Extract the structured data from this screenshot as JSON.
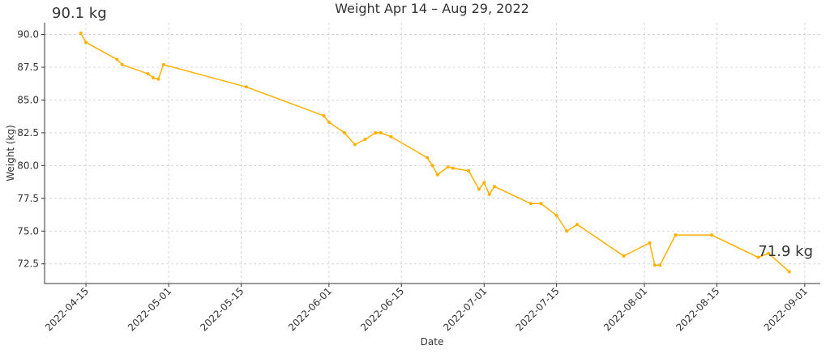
{
  "chart_data": {
    "type": "line",
    "title": "Weight Apr 14 – Aug 29, 2022",
    "x_label": "Date",
    "y_label": "Weight (kg)",
    "x": [
      "2022-04-14",
      "2022-04-15",
      "2022-04-21",
      "2022-04-22",
      "2022-04-27",
      "2022-04-28",
      "2022-04-29",
      "2022-04-30",
      "2022-05-16",
      "2022-05-31",
      "2022-06-01",
      "2022-06-04",
      "2022-06-06",
      "2022-06-08",
      "2022-06-10",
      "2022-06-11",
      "2022-06-13",
      "2022-06-20",
      "2022-06-21",
      "2022-06-22",
      "2022-06-24",
      "2022-06-25",
      "2022-06-28",
      "2022-06-30",
      "2022-07-01",
      "2022-07-02",
      "2022-07-03",
      "2022-07-10",
      "2022-07-12",
      "2022-07-15",
      "2022-07-17",
      "2022-07-19",
      "2022-07-28",
      "2022-08-02",
      "2022-08-03",
      "2022-08-04",
      "2022-08-07",
      "2022-08-14",
      "2022-08-23",
      "2022-08-25",
      "2022-08-29"
    ],
    "series": [
      {
        "name": "Weight",
        "color": "#ffb000",
        "values": [
          90.1,
          89.4,
          88.1,
          87.7,
          87.0,
          86.7,
          86.6,
          87.7,
          86.0,
          83.8,
          83.3,
          82.5,
          81.6,
          82.0,
          82.5,
          82.5,
          82.2,
          80.6,
          80.0,
          79.3,
          79.9,
          79.8,
          79.6,
          78.2,
          78.7,
          77.8,
          78.4,
          77.1,
          77.1,
          76.2,
          75.0,
          75.5,
          73.1,
          74.1,
          72.4,
          72.4,
          74.7,
          74.7,
          73.0,
          73.3,
          71.9
        ]
      }
    ],
    "xlim": [
      "2022-04-07",
      "2022-09-04"
    ],
    "xticks": [
      "2022-04-15",
      "2022-05-01",
      "2022-05-15",
      "2022-06-01",
      "2022-06-15",
      "2022-07-01",
      "2022-07-15",
      "2022-08-01",
      "2022-08-15",
      "2022-09-01"
    ],
    "ylim": [
      71.0,
      90.9
    ],
    "yticks": [
      {
        "value": 72.5,
        "label": "72.5"
      },
      {
        "value": 75,
        "label": "75.0"
      },
      {
        "value": 77.5,
        "label": "77.5"
      },
      {
        "value": 80,
        "label": "80.0"
      },
      {
        "value": 82.5,
        "label": "82.5"
      },
      {
        "value": 85,
        "label": "85.0"
      },
      {
        "value": 87.5,
        "label": "87.5"
      },
      {
        "value": 90,
        "label": "90.0"
      }
    ],
    "grid": true,
    "annotations": [
      {
        "text": "90.1 kg",
        "color": "#ff0000"
      },
      {
        "text": "71.9 kg",
        "color": "#0000ff"
      }
    ]
  }
}
